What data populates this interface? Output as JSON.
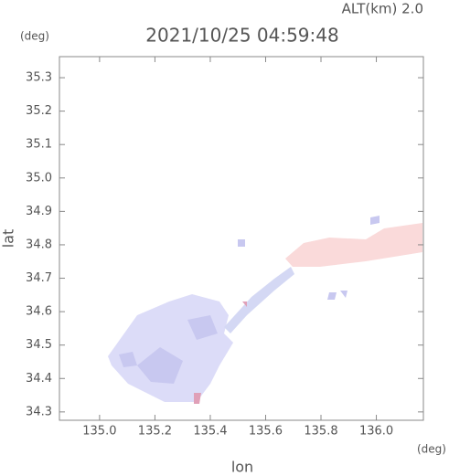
{
  "chart_data": {
    "type": "map",
    "title": "2021/10/25 04:59:48",
    "subtitle": "ALT(km) 2.0",
    "y_unit": "(deg)",
    "x_unit": "(deg)",
    "xlabel": "lon",
    "ylabel": "lat",
    "xlim": [
      134.855,
      136.17
    ],
    "ylim": [
      34.275,
      35.363
    ],
    "xticks": [
      {
        "value": 135,
        "label": "135.0"
      },
      135.2,
      135.4,
      135.6,
      135.8,
      {
        "value": 136,
        "label": "136.0"
      }
    ],
    "yticks": [
      34.3,
      34.4,
      34.5,
      34.6,
      34.7,
      34.8,
      34.9,
      {
        "value": 35,
        "label": "35.0"
      },
      35.1,
      35.2,
      35.3
    ]
  }
}
